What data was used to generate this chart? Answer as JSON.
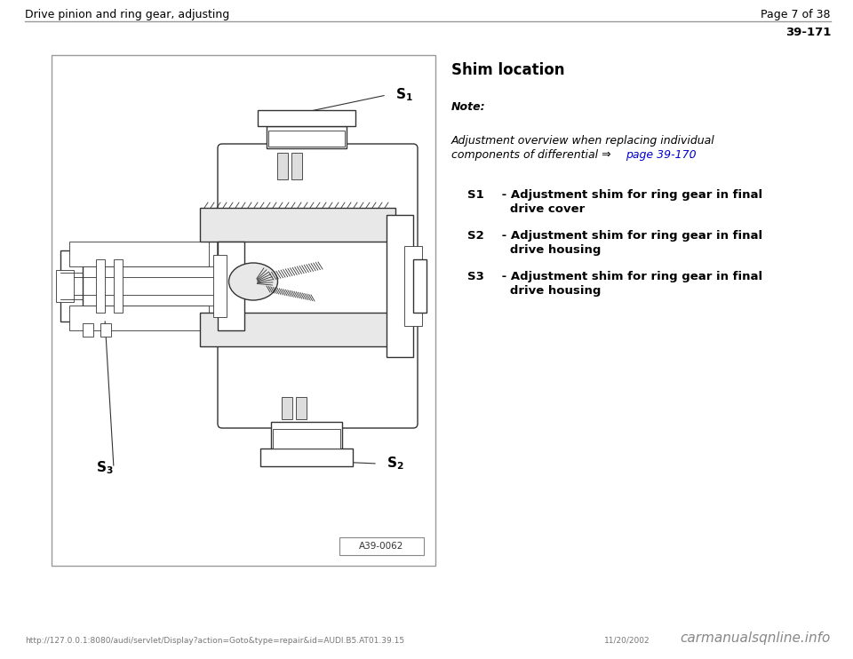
{
  "header_left": "Drive pinion and ring gear, adjusting",
  "header_right": "Page 7 of 38",
  "page_number": "39-171",
  "section_title": "Shim location",
  "note_label": "Note:",
  "note_link": "page 39-170",
  "items": [
    {
      "label": "S1",
      "text_line1": " - Adjustment shim for ring gear in final",
      "text_line2": "   drive cover"
    },
    {
      "label": "S2",
      "text_line1": " - Adjustment shim for ring gear in final",
      "text_line2": "   drive housing"
    },
    {
      "label": "S3",
      "text_line1": " - Adjustment shim for ring gear in final",
      "text_line2": "   drive housing"
    }
  ],
  "figure_label": "A39-0062",
  "footer_url": "http://127.0.0.1:8080/audi/servlet/Display?action=Goto&type=repair&id=AUDI.B5.AT01.39.15",
  "footer_date": "11/20/2002",
  "footer_right": "carmanualsqnline.info",
  "bg_color": "#ffffff",
  "header_line_color": "#999999",
  "text_color": "#000000",
  "link_color": "#0000cc",
  "footer_text_color": "#777777",
  "draw_color": "#333333",
  "header_fontsize": 9,
  "body_fontsize": 9,
  "item_fontsize": 9.5,
  "title_fontsize": 12
}
